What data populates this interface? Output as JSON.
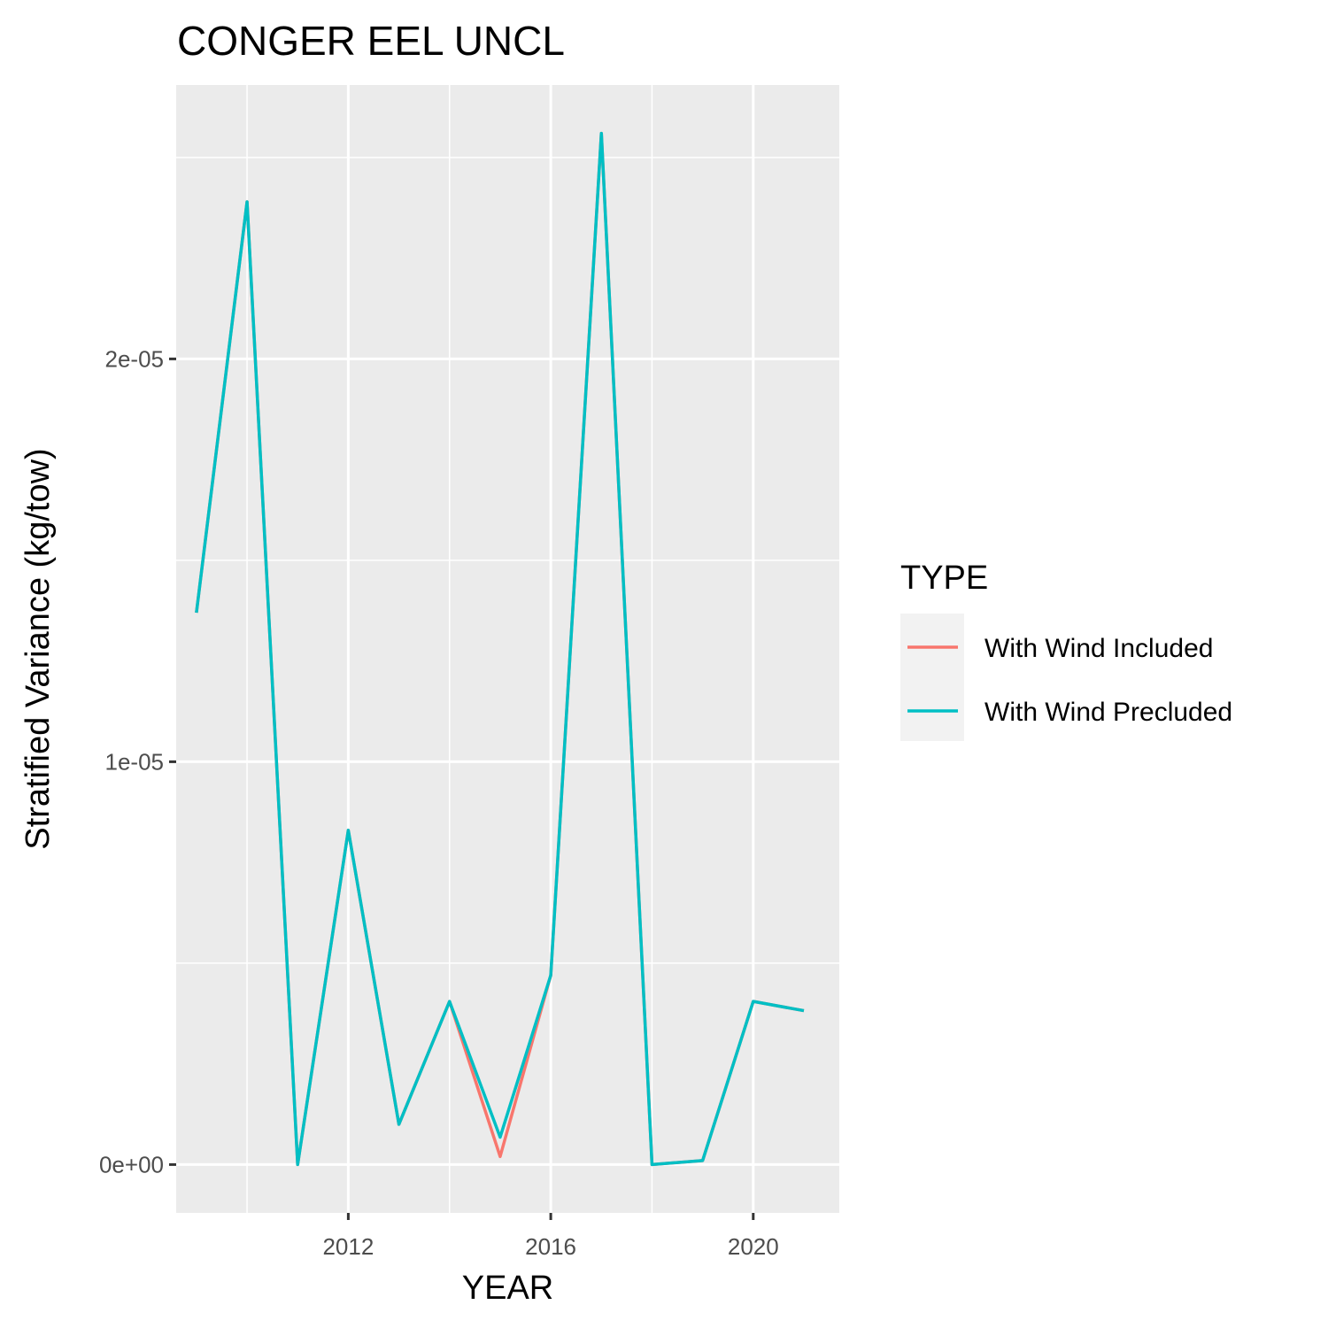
{
  "chart_data": {
    "type": "line",
    "title": "CONGER EEL UNCL",
    "xlabel": "YEAR",
    "ylabel": "Stratified Variance (kg/tow)",
    "xlim": [
      2008.6,
      2021.7
    ],
    "ylim": [
      -1.2e-06,
      2.68e-05
    ],
    "x_ticks": [
      2012,
      2016,
      2020
    ],
    "x_tick_labels": [
      "2012",
      "2016",
      "2020"
    ],
    "y_ticks": [
      0,
      1e-05,
      2e-05
    ],
    "y_tick_labels": [
      "0e+00",
      "1e-05",
      "2e-05"
    ],
    "grid": true,
    "legend": {
      "title": "TYPE",
      "position": "right"
    },
    "x": [
      2009,
      2010,
      2011,
      2012,
      2013,
      2014,
      2015,
      2016,
      2017,
      2018,
      2019,
      2020,
      2021
    ],
    "series": [
      {
        "name": "With Wind Included",
        "color": "#F8766D",
        "values": [
          1.37e-05,
          2.39e-05,
          0.0,
          8.3e-06,
          1e-06,
          4.05e-06,
          2e-07,
          4.7e-06,
          2.56e-05,
          0.0,
          1e-07,
          4.05e-06,
          3.82e-06
        ]
      },
      {
        "name": "With Wind Precluded",
        "color": "#00BFC4",
        "values": [
          1.37e-05,
          2.39e-05,
          0.0,
          8.3e-06,
          1e-06,
          4.05e-06,
          6.8e-07,
          4.7e-06,
          2.56e-05,
          0.0,
          1e-07,
          4.05e-06,
          3.82e-06
        ]
      }
    ]
  }
}
